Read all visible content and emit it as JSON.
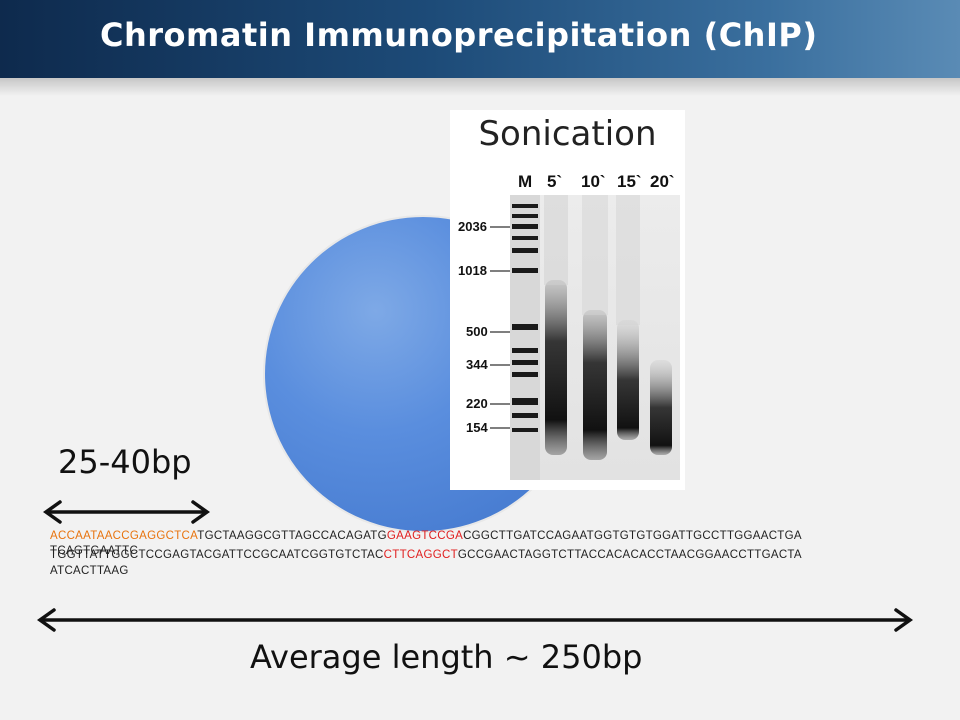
{
  "title": "Chromatin Immunoprecipitation (ChIP)",
  "gel": {
    "label": "Sonication",
    "lanes": [
      "M",
      "5`",
      "10`",
      "15`",
      "20`"
    ],
    "markers": [
      "2036",
      "1018",
      "500",
      "344",
      "220",
      "154"
    ]
  },
  "fragment_label": "25-40bp",
  "sequence": {
    "line1_orange": "ACCAATAACCGAGGCTCA",
    "line1_black_a": "TGCTAAGGCGTTAGCCACAGATG",
    "line1_red": "GAAGTCCGA",
    "line1_black_b": "CGGCTTGATCCAGAATGGTGTGTGGATTGCCTTGGAACTGA",
    "line2_overlap": "TGGTTATTGGCT",
    "line2a_overlay": "TCAGTGAATTC",
    "line2_black_a": "CCGAGTACGATTCCGCAATCGGTGTCTAC",
    "line2_red": "CTTCAGGCT",
    "line2_black_b": "GCCGAACTAGGTCTTACCACACACCTAACGGAACCTTGACTA",
    "line3": "ATCACTTAAG"
  },
  "average_label": "Average length ~ 250bp"
}
